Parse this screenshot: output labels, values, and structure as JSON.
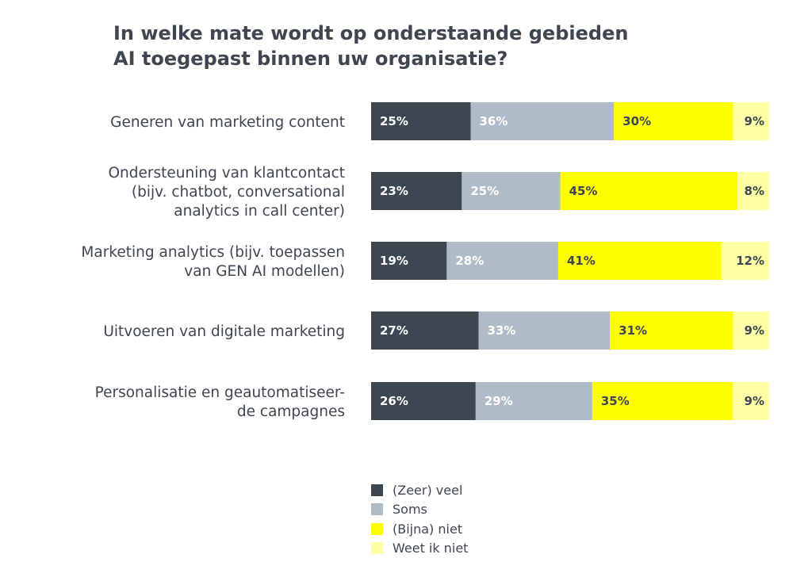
{
  "chart_data": {
    "type": "bar",
    "orientation": "horizontal",
    "stacked": true,
    "title": "In welke mate wordt op onderstaande gebieden AI toegepast binnen uw organisatie?",
    "title_lines": [
      "In welke mate wordt op onderstaande gebieden",
      "AI toegepast binnen uw organisatie?"
    ],
    "categories": [
      [
        "Generen van marketing content"
      ],
      [
        "Ondersteuning van klantcontact",
        "(bijv. chatbot, conversational",
        "analytics in call center)"
      ],
      [
        "Marketing analytics (bijv. toepassen",
        "van GEN AI modellen)"
      ],
      [
        "Uitvoeren van digitale marketing"
      ],
      [
        "Personalisatie en geautomatiseer-",
        "de campagnes"
      ]
    ],
    "value_suffix": "%",
    "series": [
      {
        "name": "(Zeer) veel",
        "color": "#3d4751",
        "label_color": "#ffffff",
        "values": [
          25,
          23,
          19,
          27,
          26
        ]
      },
      {
        "name": "Soms",
        "color": "#afbbc6",
        "label_color": "#ffffff",
        "values": [
          36,
          25,
          28,
          33,
          29
        ]
      },
      {
        "name": "(Bijna) niet",
        "color": "#ffff00",
        "label_color": "#3d4751",
        "values": [
          30,
          45,
          41,
          31,
          35
        ]
      },
      {
        "name": "Weet ik niet",
        "color": "#ffffa6",
        "label_color": "#3d4751",
        "values": [
          9,
          8,
          12,
          9,
          9
        ]
      }
    ],
    "legend": "bottom"
  }
}
